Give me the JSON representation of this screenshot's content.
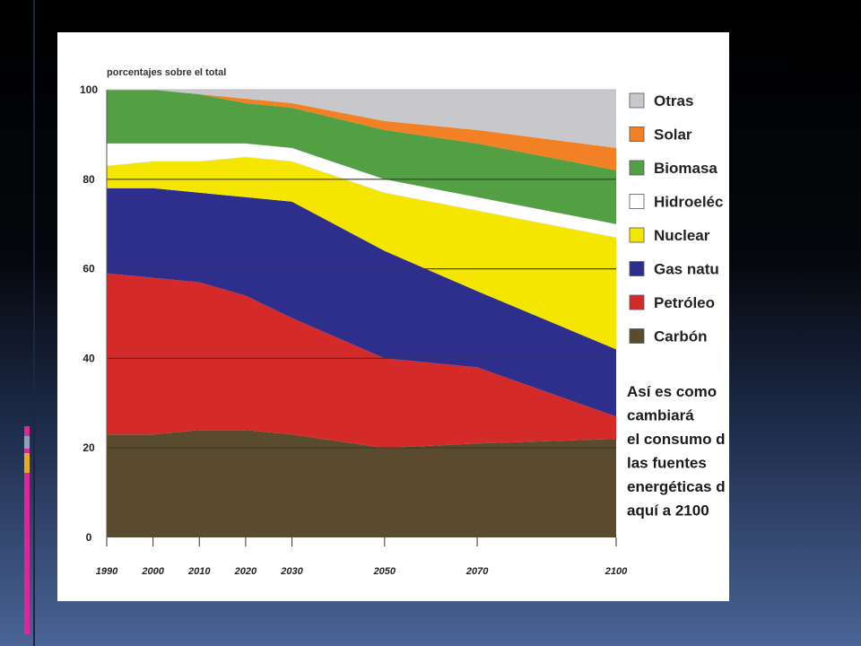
{
  "slide": {
    "accent_colors": {
      "magenta": "#e1249b",
      "gold": "#e5ac1c",
      "steel": "#8fa0b8"
    }
  },
  "chart_data": {
    "type": "area",
    "subtitle": "porcentajes sobre el total",
    "x": [
      1990,
      2000,
      2010,
      2020,
      2030,
      2050,
      2070,
      2100
    ],
    "x_tick_labels": [
      "1990",
      "2000",
      "2010",
      "2020",
      "2030",
      "2050",
      "2070",
      "2100"
    ],
    "y_ticks": [
      "100",
      "80",
      "60",
      "40",
      "20",
      "0"
    ],
    "ylim": [
      0,
      100
    ],
    "stacked": true,
    "grid": "horizontal at 20, 40, 60, 80",
    "legend_position": "right",
    "series": [
      {
        "name": "Carbón",
        "color": "#5a4a2e",
        "values": [
          23,
          23,
          24,
          24,
          23,
          20,
          21,
          22
        ]
      },
      {
        "name": "Petróleo",
        "color": "#d42b2a",
        "values": [
          36,
          35,
          33,
          30,
          26,
          20,
          17,
          5
        ]
      },
      {
        "name": "Gas natu",
        "color": "#2e2e8c",
        "values": [
          19,
          20,
          20,
          22,
          26,
          24,
          17,
          15
        ]
      },
      {
        "name": "Nuclear",
        "color": "#f5e600",
        "values": [
          5,
          6,
          7,
          9,
          9,
          13,
          18,
          25
        ]
      },
      {
        "name": "Hidroeléc",
        "color": "#ffffff",
        "values": [
          5,
          4,
          4,
          3,
          3,
          3,
          3,
          3
        ]
      },
      {
        "name": "Biomasa",
        "color": "#52a043",
        "values": [
          12,
          12,
          11,
          9,
          9,
          11,
          12,
          12
        ]
      },
      {
        "name": "Solar",
        "color": "#f28024",
        "values": [
          0,
          0,
          0,
          1,
          1,
          2,
          3,
          5
        ]
      },
      {
        "name": "Otras",
        "color": "#c8c8cc",
        "values": [
          0,
          0,
          1,
          2,
          3,
          7,
          9,
          13
        ]
      }
    ],
    "legend_order": [
      "Otras",
      "Solar",
      "Biomasa",
      "Hidroeléc",
      "Nuclear",
      "Gas natu",
      "Petróleo",
      "Carbón"
    ],
    "note_lines": [
      "Así es como",
      "cambiará",
      "el consumo d",
      "las fuentes",
      "energéticas d",
      "aquí a 2100"
    ]
  }
}
